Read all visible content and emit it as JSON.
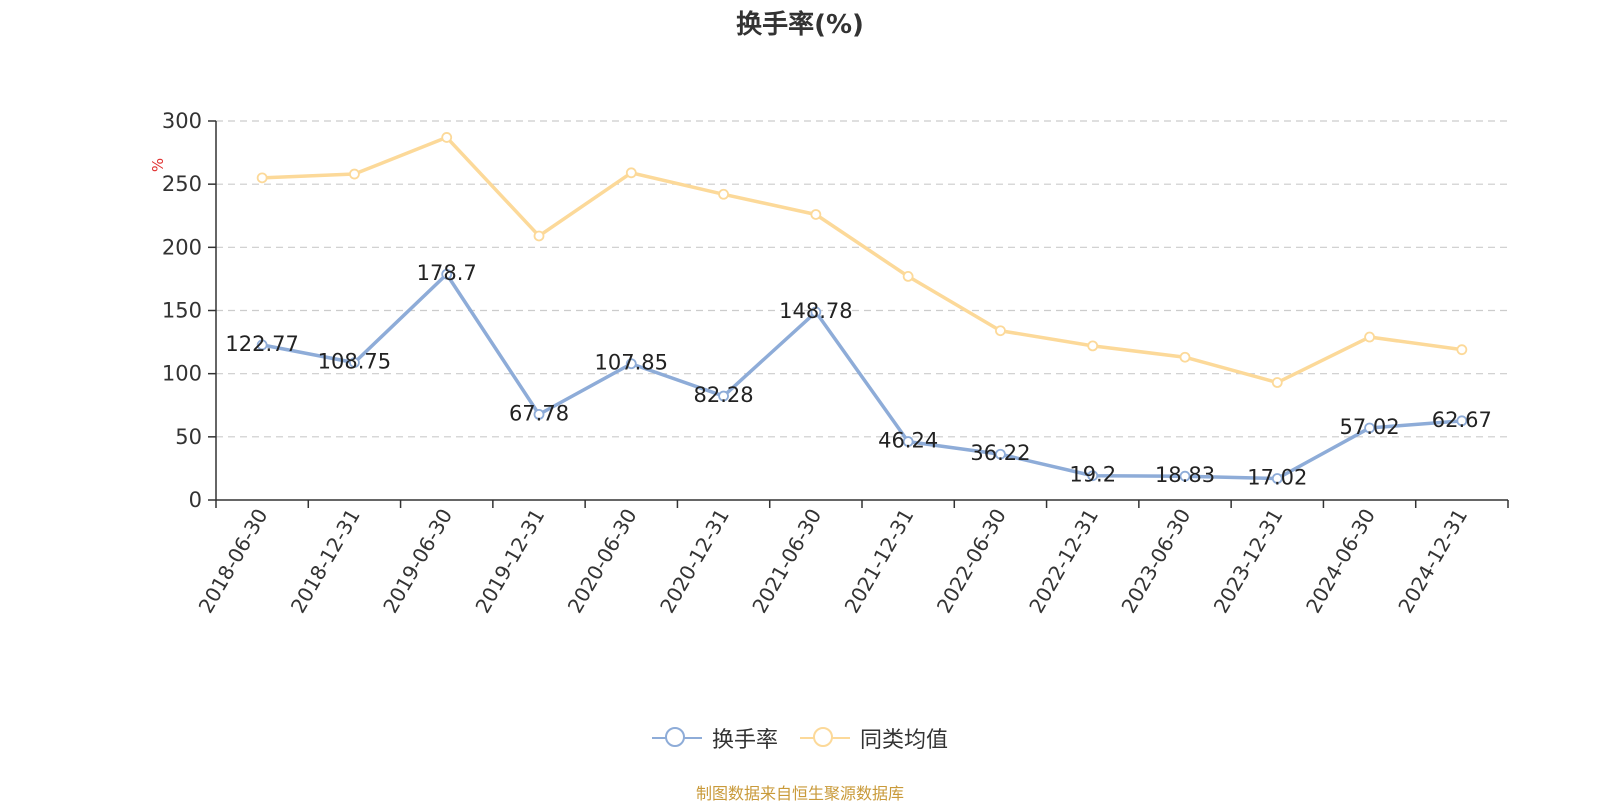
{
  "chart_data": {
    "type": "line",
    "title": "换手率(%)",
    "ylabel": "%",
    "xlabel": "",
    "ylim": [
      0,
      300
    ],
    "yticks": [
      0,
      50,
      100,
      150,
      200,
      250,
      300
    ],
    "grid": true,
    "legend_position": "bottom-center",
    "categories": [
      "2018-06-30",
      "2018-12-31",
      "2019-06-30",
      "2019-12-31",
      "2020-06-30",
      "2020-12-31",
      "2021-06-30",
      "2021-12-31",
      "2022-06-30",
      "2022-12-31",
      "2023-06-30",
      "2023-12-31",
      "2024-06-30",
      "2024-12-31"
    ],
    "series": [
      {
        "name": "换手率",
        "color": "#8eacd8",
        "show_labels": true,
        "labels": [
          "122.77",
          "108.75",
          "178.7",
          "67.78",
          "107.85",
          "82.28",
          "148.78",
          "46.24",
          "36.22",
          "19.2",
          "18.83",
          "17.02",
          "57.02",
          "62.67"
        ],
        "values": [
          122.77,
          108.75,
          178.7,
          67.78,
          107.85,
          82.28,
          148.78,
          46.24,
          36.22,
          19.2,
          18.83,
          17.02,
          57.02,
          62.67
        ]
      },
      {
        "name": "同类均值",
        "color": "#fcd999",
        "show_labels": false,
        "values": [
          255,
          258,
          287,
          209,
          259,
          242,
          226,
          177,
          134,
          122,
          113,
          93,
          129,
          119
        ]
      }
    ]
  },
  "footer": {
    "source": "制图数据来自恒生聚源数据库"
  },
  "colors": {
    "axis": "#333333",
    "grid": "#cccccc",
    "ylabel": "#e03131",
    "source": "#c99a3a"
  }
}
